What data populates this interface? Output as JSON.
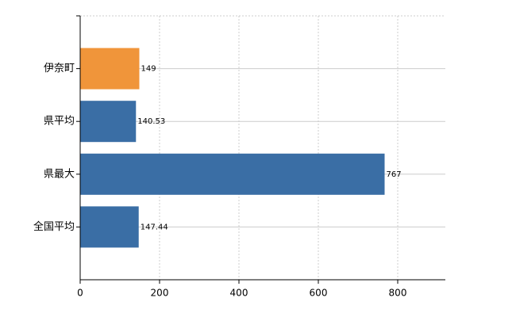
{
  "chart_data": {
    "type": "bar",
    "orientation": "horizontal",
    "categories": [
      "伊奈町",
      "県平均",
      "県最大",
      "全国平均"
    ],
    "values": [
      149,
      140.53,
      767,
      147.44
    ],
    "colors": [
      "#f0953a",
      "#3a6ea5",
      "#3a6ea5",
      "#3a6ea5"
    ],
    "xlim": [
      0,
      920
    ],
    "xticks": [
      0,
      200,
      400,
      600,
      800
    ],
    "grid": true
  }
}
